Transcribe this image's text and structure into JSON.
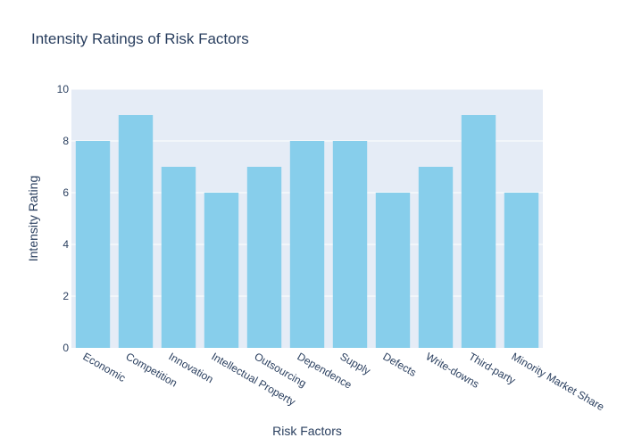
{
  "chart_data": {
    "type": "bar",
    "title": "Intensity Ratings of Risk Factors",
    "xlabel": "Risk Factors",
    "ylabel": "Intensity Rating",
    "categories": [
      "Economic",
      "Competition",
      "Innovation",
      "Intellectual Property",
      "Outsourcing",
      "Dependence",
      "Supply",
      "Defects",
      "Write-downs",
      "Third-party",
      "Minority Market Share"
    ],
    "values": [
      8,
      9,
      7,
      6,
      7,
      8,
      8,
      6,
      7,
      9,
      6
    ],
    "ylim": [
      0,
      10
    ],
    "yticks": [
      0,
      2,
      4,
      6,
      8,
      10
    ],
    "grid": true,
    "colors": {
      "bar": "#87ceeb",
      "plot_background": "#e5ecf6",
      "grid": "#ffffff",
      "text": "#2a3f5f"
    }
  }
}
